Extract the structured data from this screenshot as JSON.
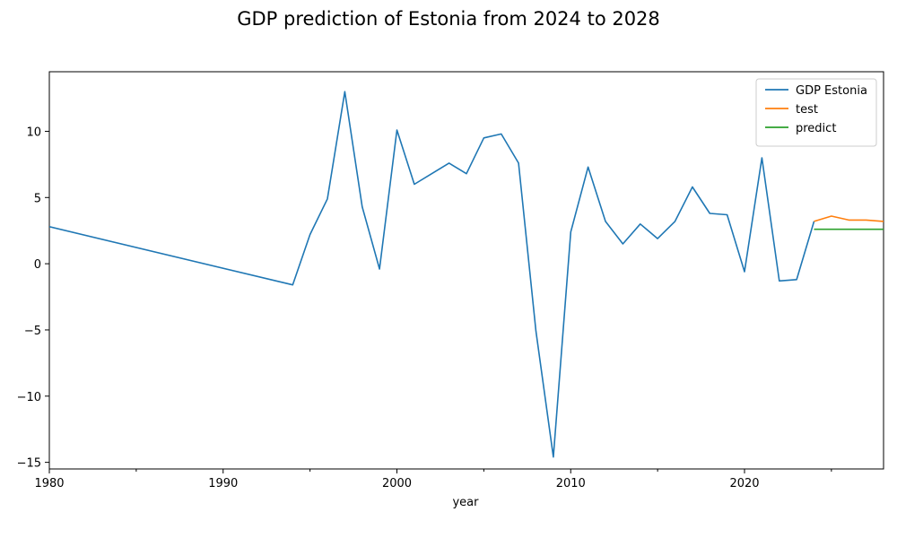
{
  "chart_data": {
    "type": "line",
    "title": "GDP prediction of Estonia from 2024 to 2028",
    "xlabel": "year",
    "ylabel": "",
    "xlim": [
      1980,
      2028
    ],
    "ylim": [
      -15.5,
      14.5
    ],
    "x_ticks_major": [
      "1980",
      "1990",
      "2000",
      "2010",
      "2020"
    ],
    "x_ticks_minor": [
      1985,
      1995,
      2005,
      2015,
      2025
    ],
    "y_ticks": [
      "−15",
      "−10",
      "−5",
      "0",
      "5",
      "10"
    ],
    "grid": false,
    "legend_position": "top-right",
    "series": [
      {
        "name": "GDP Estonia",
        "color": "#1f77b4",
        "x": [
          1980,
          1994,
          1995,
          1996,
          1997,
          1998,
          1999,
          2000,
          2001,
          2002,
          2003,
          2004,
          2005,
          2006,
          2007,
          2008,
          2009,
          2010,
          2011,
          2012,
          2013,
          2014,
          2015,
          2016,
          2017,
          2018,
          2019,
          2020,
          2021,
          2022,
          2023,
          2024
        ],
        "values": [
          2.8,
          -1.6,
          2.2,
          4.9,
          13.0,
          4.3,
          -0.4,
          10.1,
          6.0,
          6.8,
          7.6,
          6.8,
          9.5,
          9.8,
          7.6,
          -5.1,
          -14.6,
          2.4,
          7.3,
          3.2,
          1.5,
          3.0,
          1.9,
          3.2,
          5.8,
          3.8,
          3.7,
          -0.6,
          8.0,
          -1.3,
          -1.2,
          3.2
        ]
      },
      {
        "name": "test",
        "color": "#ff7f0e",
        "x": [
          2024,
          2025,
          2026,
          2027,
          2028
        ],
        "values": [
          3.2,
          3.6,
          3.3,
          3.3,
          3.2
        ]
      },
      {
        "name": "predict",
        "color": "#2ca02c",
        "x": [
          2024,
          2025,
          2026,
          2027,
          2028
        ],
        "values": [
          2.6,
          2.6,
          2.6,
          2.6,
          2.6
        ]
      }
    ]
  }
}
